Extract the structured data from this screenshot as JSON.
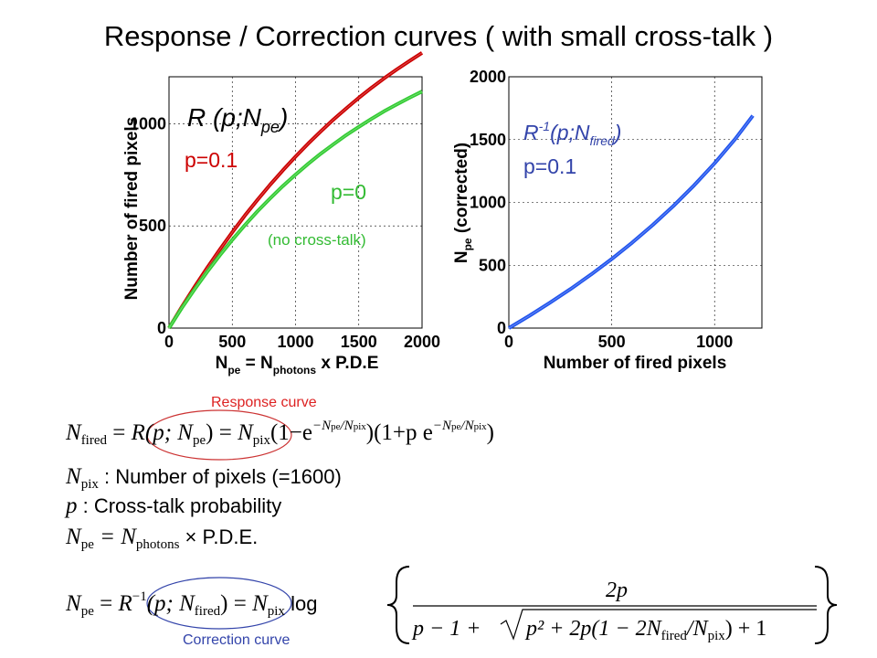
{
  "title": "Response / Correction curves ( with small cross-talk )",
  "colors": {
    "red": "#cc0000",
    "green": "#33cc33",
    "blue": "#2255ee",
    "ink": "#000000",
    "label_blue": "#3344aa"
  },
  "chart_data": [
    {
      "type": "line",
      "xlabel": "N_pe = N_photons x P.D.E",
      "ylabel": "Number of fired pixels",
      "xlim": [
        0,
        2000
      ],
      "ylim": [
        0,
        1230
      ],
      "xticks": [
        "0",
        "500",
        "1000",
        "1500",
        "2000"
      ],
      "yticks": [
        "0",
        "500",
        "1000"
      ],
      "annotations": {
        "func": "R (p;N",
        "func_sub": "pe",
        "func_close": ")",
        "red_label": "p=0.1",
        "green_label": "p=0",
        "green_note": "(no cross-talk)"
      },
      "series": [
        {
          "name": "p=0.1",
          "color": "#cc0000",
          "x": [
            0,
            100,
            200,
            300,
            400,
            500,
            600,
            700,
            800,
            900,
            1000,
            1100,
            1200,
            1300,
            1400,
            1500,
            1600,
            1700,
            1800,
            1900,
            2000
          ],
          "y": [
            0,
            102,
            200,
            294,
            383,
            469,
            551,
            628,
            702,
            772,
            839,
            903,
            963,
            1021,
            1075,
            1127,
            1176,
            1222,
            1266,
            1307,
            1347
          ]
        },
        {
          "name": "p=0",
          "color": "#33cc33",
          "x": [
            0,
            100,
            200,
            300,
            400,
            500,
            600,
            700,
            800,
            900,
            1000,
            1100,
            1200,
            1300,
            1400,
            1500,
            1600,
            1700,
            1800,
            1900,
            2000
          ],
          "y": [
            0,
            97,
            188,
            274,
            355,
            432,
            504,
            572,
            635,
            695,
            751,
            804,
            854,
            900,
            944,
            985,
            1024,
            1061,
            1095,
            1127,
            1158
          ]
        }
      ]
    },
    {
      "type": "line",
      "xlabel": "Number of fired pixels",
      "ylabel": "N_pe (corrected)",
      "xlim": [
        0,
        1230
      ],
      "ylim": [
        0,
        2000
      ],
      "xticks": [
        "0",
        "500",
        "1000"
      ],
      "yticks": [
        "0",
        "500",
        "1000",
        "1500",
        "2000"
      ],
      "annotations": {
        "func": "R",
        "func_sup": "-1",
        "func_mid": "(p;N",
        "func_sub": "fired",
        "func_close": ")",
        "p_label": "p=0.1"
      },
      "series": [
        {
          "name": "p=0.1",
          "color": "#2255ee",
          "x": [
            0,
            100,
            200,
            300,
            400,
            500,
            600,
            700,
            800,
            900,
            1000,
            1100,
            1186
          ],
          "y": [
            0,
            98,
            202,
            311,
            427,
            550,
            681,
            821,
            972,
            1135,
            1311,
            1504,
            1690
          ]
        }
      ]
    }
  ],
  "labels": {
    "response_curve": "Response curve",
    "correction_curve": "Correction curve"
  },
  "formulas": {
    "f1_lhs": "N",
    "f1_lhs_sub": "fired",
    "f1_eq": "=",
    "f1_R": "R(p; N",
    "f1_R_sub": "pe",
    "f1_R_close": ")",
    "f1_eq2": "=",
    "f1_Npix": "N",
    "f1_Npix_sub": "pix",
    "f1_part1": "(1−e",
    "f1_exp": "−N",
    "f1_exp_sub1": "pe",
    "f1_exp_mid": "/N",
    "f1_exp_sub2": "pix",
    "f1_part2": ")(1+p e",
    "f1_close": ")",
    "def1_var": "N",
    "def1_sub": "pix",
    "def1_text": " : Number of pixels (=1600)",
    "def2_var": "p",
    "def2_text": " : Cross-talk probability",
    "def3_var": "N",
    "def3_sub": "pe",
    "def3_mid": " = N",
    "def3_sub2": "photons",
    "def3_text": " × P.D.E.",
    "f2_lhs": "N",
    "f2_lhs_sub": "pe",
    "f2_eq": "=",
    "f2_R": "R",
    "f2_R_sup": "−1",
    "f2_R_args": "(p; N",
    "f2_R_sub": "fired",
    "f2_R_close": ")",
    "f2_eq2": "=",
    "f2_Npix": "N",
    "f2_Npix_sub": "pix",
    "f2_log": "log",
    "f2_num": "2p",
    "f2_den_a": "p − 1 + ",
    "f2_den_root": "p² + 2p(1 − 2N",
    "f2_den_root_sub": "fired",
    "f2_den_root_b": "/N",
    "f2_den_root_sub2": "pix",
    "f2_den_root_c": ") + 1"
  }
}
